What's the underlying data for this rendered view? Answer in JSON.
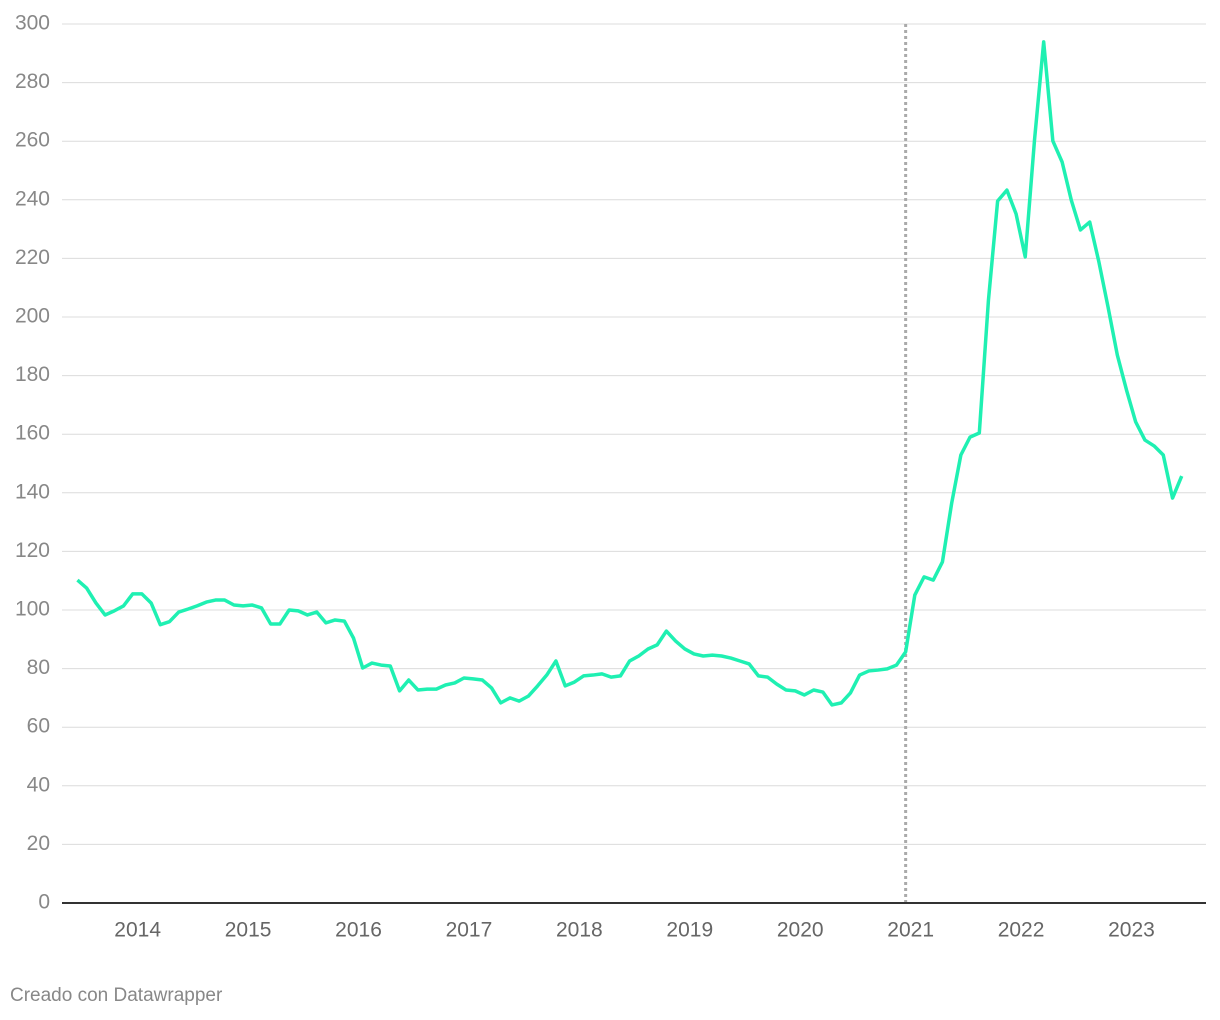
{
  "chart_data": {
    "type": "line",
    "footer": "Creado con Datawrapper",
    "x": [
      2013.5,
      2013.583,
      2013.667,
      2013.75,
      2013.833,
      2013.917,
      2014,
      2014.083,
      2014.167,
      2014.25,
      2014.333,
      2014.417,
      2014.5,
      2014.583,
      2014.667,
      2014.75,
      2014.833,
      2014.917,
      2015,
      2015.083,
      2015.167,
      2015.25,
      2015.333,
      2015.417,
      2015.5,
      2015.583,
      2015.667,
      2015.75,
      2015.833,
      2015.917,
      2016,
      2016.083,
      2016.167,
      2016.25,
      2016.333,
      2016.417,
      2016.5,
      2016.583,
      2016.667,
      2016.75,
      2016.833,
      2016.917,
      2017,
      2017.083,
      2017.167,
      2017.25,
      2017.333,
      2017.417,
      2017.5,
      2017.583,
      2017.667,
      2017.75,
      2017.833,
      2017.917,
      2018,
      2018.083,
      2018.167,
      2018.25,
      2018.333,
      2018.417,
      2018.5,
      2018.583,
      2018.667,
      2018.75,
      2018.833,
      2018.917,
      2019,
      2019.083,
      2019.167,
      2019.25,
      2019.333,
      2019.417,
      2019.5,
      2019.583,
      2019.667,
      2019.75,
      2019.833,
      2019.917,
      2020,
      2020.083,
      2020.167,
      2020.25,
      2020.333,
      2020.417,
      2020.5,
      2020.583,
      2020.667,
      2020.75,
      2020.833,
      2020.917,
      2021,
      2021.083,
      2021.167,
      2021.25,
      2021.333,
      2021.417,
      2021.5,
      2021.583,
      2021.667,
      2021.75,
      2021.833,
      2021.917,
      2022,
      2022.083,
      2022.167,
      2022.25,
      2022.333,
      2022.417,
      2022.5,
      2022.583,
      2022.667,
      2022.75,
      2022.833,
      2022.917,
      2023,
      2023.083,
      2023.167,
      2023.25,
      2023.333,
      2023.417,
      2023.5
    ],
    "series": [
      {
        "color": "#1ff0b2",
        "values": [
          110.2,
          107.5,
          102.4,
          98.3,
          99.7,
          101.4,
          105.5,
          105.5,
          102.4,
          95,
          96,
          99.3,
          100.3,
          101.4,
          102.7,
          103.4,
          103.4,
          101.7,
          101.4,
          101.7,
          100.7,
          95.2,
          95.2,
          100,
          99.7,
          98.3,
          99.3,
          95.6,
          96.6,
          96.2,
          90.4,
          80.2,
          81.9,
          81.2,
          80.9,
          72.4,
          76.1,
          72.7,
          73,
          73,
          74.4,
          75.1,
          76.8,
          76.5,
          76.1,
          73.4,
          68.3,
          70,
          68.9,
          70.6,
          74.1,
          77.8,
          82.6,
          74.1,
          75.4,
          77.5,
          77.8,
          78.2,
          77.1,
          77.5,
          82.6,
          84.3,
          86.7,
          88.1,
          92.8,
          89.4,
          86.7,
          85,
          84.3,
          84.6,
          84.3,
          83.6,
          82.6,
          81.6,
          77.5,
          77.1,
          74.7,
          72.7,
          72.4,
          71,
          72.7,
          72,
          67.6,
          68.3,
          71.7,
          77.8,
          79.2,
          79.5,
          79.9,
          81.2,
          85.7,
          105.1,
          111.3,
          110.2,
          116.4,
          136.5,
          152.9,
          159,
          160.4,
          205.8,
          239.6,
          243.3,
          235.2,
          220.5,
          260.4,
          293.9,
          260.1,
          252.9,
          239.9,
          229.7,
          232.4,
          218.8,
          203.4,
          187,
          175.1,
          164.2,
          158,
          156,
          152.9,
          138.2,
          145.7
        ]
      }
    ],
    "xlim": [
      2013.36,
      2023.72
    ],
    "xticks": [
      2014,
      2015,
      2016,
      2017,
      2018,
      2019,
      2020,
      2021,
      2022,
      2023
    ],
    "ylim": [
      0,
      300
    ],
    "yticks": [
      0,
      20,
      40,
      60,
      80,
      100,
      120,
      140,
      160,
      180,
      200,
      220,
      240,
      260,
      280,
      300
    ],
    "vline": 2021,
    "grid": true
  }
}
